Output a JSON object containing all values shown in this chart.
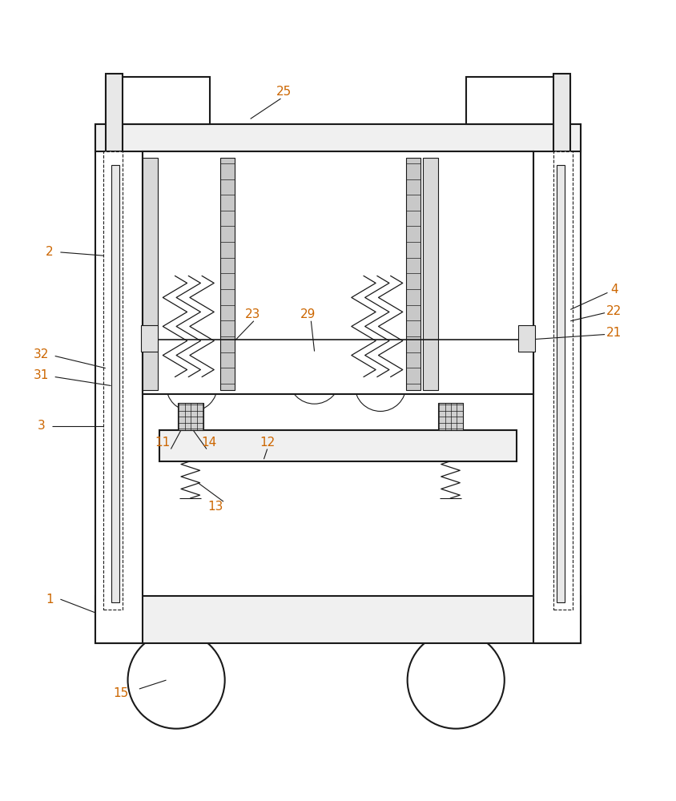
{
  "bg_color": "#ffffff",
  "line_color": "#1a1a1a",
  "label_color_num": "#cc6600",
  "fig_width": 8.44,
  "fig_height": 10.0,
  "dpi": 100
}
